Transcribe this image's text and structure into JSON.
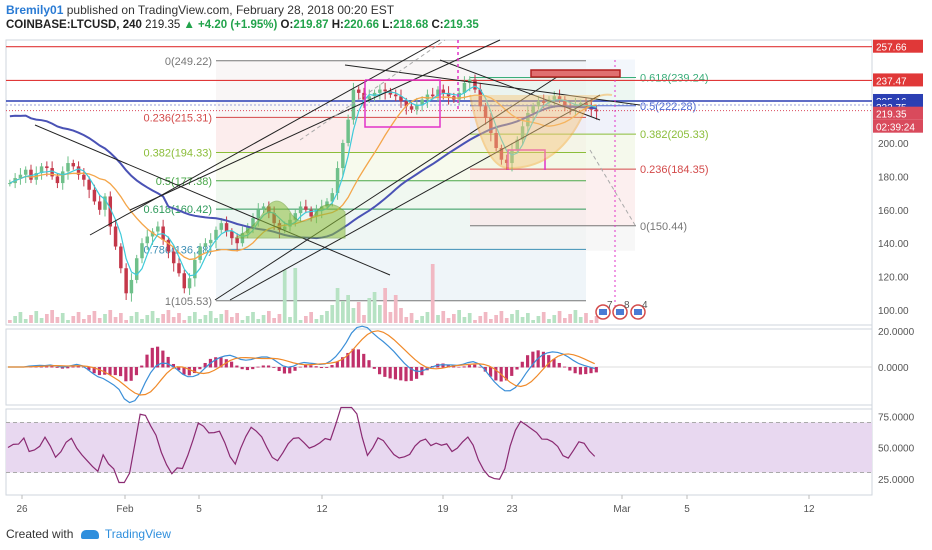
{
  "header": {
    "author": "Bremily01",
    "published_text": "published on TradingView.com, February 28, 2018 00:20 EST",
    "symbol": "COINBASE:LTCUSD, 240",
    "last": "219.35",
    "change": "▲ +4.20 (+1.95%)",
    "open_label": "O:",
    "open": "219.87",
    "high_label": "H:",
    "high": "220.66",
    "low_label": "L:",
    "low": "218.68",
    "close_label": "C:",
    "close": "219.35"
  },
  "footer": {
    "created": "Created with",
    "brand": "TradingView"
  },
  "colors": {
    "bull": "#6fc08a",
    "bear": "#c4384a",
    "ma_blue": "#4a52b5",
    "ma_orange": "#f4a64a",
    "cyan": "#3ecad9",
    "magenta": "#e233c9",
    "fib_red": "#d34a4a",
    "fib_green": "#8bbd39",
    "rsi_line": "#8a2a72",
    "rsi_band": "#e8d8f0",
    "pattern_orange": "#f7a832"
  },
  "chart_data": [
    {
      "type": "candlestick",
      "title": "",
      "y_ticks": [
        "100.00",
        "120.00",
        "140.00",
        "160.00",
        "180.00",
        "200.00"
      ],
      "ylim": [
        95,
        262
      ],
      "x_ticks": [
        "26",
        "Feb",
        "5",
        "12",
        "19",
        "23",
        "Mar",
        "5",
        "12"
      ],
      "price_tags": [
        {
          "value": "257.66",
          "color": "#e03838"
        },
        {
          "value": "237.47",
          "color": "#e03838"
        },
        {
          "value": "225.16",
          "color": "#2b3fb3"
        },
        {
          "value": "222.75",
          "color": "#2b3fb3"
        },
        {
          "value": "219.35",
          "color": "#d94a5c"
        },
        {
          "value": "02:39:24",
          "color": "#d94a5c"
        }
      ],
      "fib_left": [
        {
          "label": "0(249.22)",
          "color": "#777777",
          "y": 249.22
        },
        {
          "label": "0.236(215.31)",
          "color": "#d34a4a",
          "y": 215.31
        },
        {
          "label": "0.382(194.33)",
          "color": "#8bbd39",
          "y": 194.33
        },
        {
          "label": "0.5(177.38)",
          "color": "#4aa84a",
          "y": 177.38
        },
        {
          "label": "0.618(160.42)",
          "color": "#2e9a5a",
          "y": 160.42
        },
        {
          "label": "0.786(136.28)",
          "color": "#3e8fb5",
          "y": 136.28
        },
        {
          "label": "1(105.53)",
          "color": "#777777",
          "y": 105.53
        }
      ],
      "fib_right": [
        {
          "label": "0.618(239.24)",
          "color": "#3aae7a",
          "y": 239.24
        },
        {
          "label": "0.5(222.28)",
          "color": "#4f6bd4",
          "y": 222.28
        },
        {
          "label": "0.382(205.33)",
          "color": "#8bbd39",
          "y": 205.33
        },
        {
          "label": "0.236(184.35)",
          "color": "#d34a4a",
          "y": 184.35
        },
        {
          "label": "0(150.44)",
          "color": "#777777",
          "y": 150.44
        }
      ],
      "event_badges": [
        "7",
        "8",
        "4"
      ],
      "close_series": [
        176,
        179,
        181,
        184,
        178,
        182,
        186,
        185,
        180,
        176,
        183,
        188,
        186,
        181,
        178,
        172,
        165,
        160,
        168,
        150,
        138,
        125,
        110,
        118,
        131,
        140,
        144,
        147,
        150,
        142,
        135,
        128,
        122,
        113,
        119,
        130,
        138,
        140,
        142,
        148,
        152,
        147,
        143,
        140,
        146,
        150,
        155,
        160,
        162,
        158,
        152,
        148,
        150,
        154,
        158,
        162,
        160,
        156,
        160,
        162,
        165,
        170,
        185,
        200,
        214,
        232,
        230,
        226,
        228,
        230,
        232,
        231,
        229,
        228,
        225,
        222,
        220,
        223,
        226,
        229,
        228,
        232,
        230,
        228,
        226,
        230,
        236,
        238,
        232,
        222,
        215,
        206,
        197,
        190,
        188,
        196,
        202,
        210,
        218,
        222,
        225,
        224,
        226,
        228,
        226,
        222,
        221,
        223,
        224,
        222,
        220,
        219
      ]
    },
    {
      "type": "macd",
      "y_ticks": [
        "20.0000",
        "0.0000"
      ],
      "ylim": [
        -20,
        22
      ]
    },
    {
      "type": "rsi",
      "y_ticks": [
        "75.0000",
        "50.0000",
        "25.0000"
      ],
      "ylim": [
        15,
        85
      ]
    }
  ]
}
